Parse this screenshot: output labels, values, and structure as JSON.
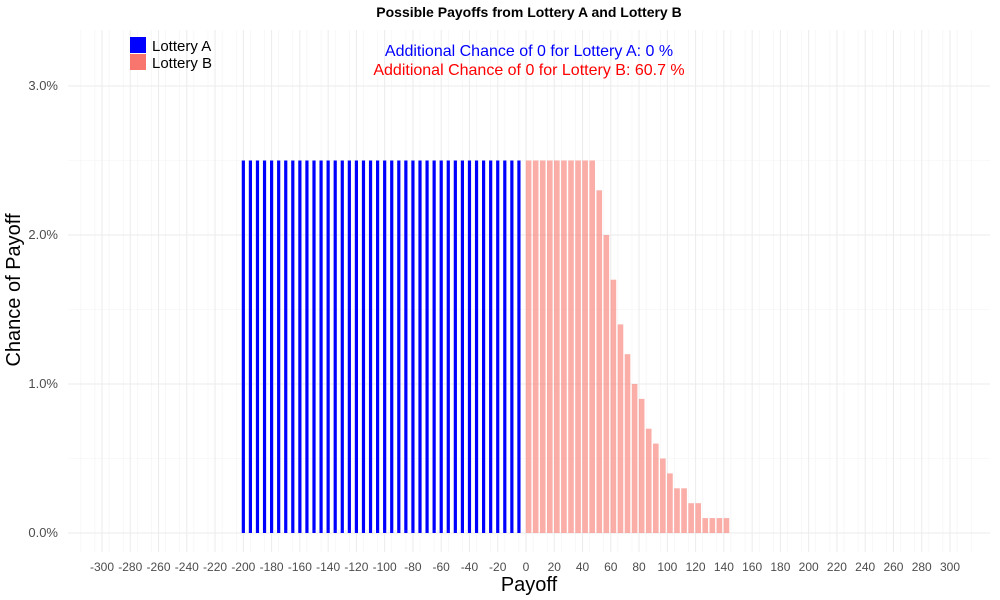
{
  "chart_data": {
    "type": "bar",
    "title": "Possible Payoffs from Lottery A and Lottery B",
    "xlabel": "Payoff",
    "ylabel": "Chance of Payoff",
    "xlim": [
      -315,
      315
    ],
    "ylim": [
      0,
      0.034
    ],
    "x_ticks": [
      -300,
      -280,
      -260,
      -240,
      -220,
      -200,
      -180,
      -160,
      -140,
      -120,
      -100,
      -80,
      -60,
      -40,
      -20,
      0,
      20,
      40,
      60,
      80,
      100,
      120,
      140,
      160,
      180,
      200,
      220,
      240,
      260,
      280,
      300
    ],
    "x_tick_labels": [
      "-300",
      "-280",
      "-260",
      "-240",
      "-220",
      "-200",
      "-180",
      "-160",
      "-140",
      "-120",
      "-100",
      "-80",
      "-60",
      "-40",
      "-20",
      "0",
      "20",
      "40",
      "60",
      "80",
      "100",
      "120",
      "140",
      "160",
      "180",
      "200",
      "220",
      "240",
      "260",
      "280",
      "300"
    ],
    "y_ticks": [
      0,
      0.01,
      0.02,
      0.03
    ],
    "y_tick_labels": [
      "0.0%",
      "1.0%",
      "2.0%",
      "3.0%"
    ],
    "grid": true,
    "legend_position": "top-left",
    "annotations": [
      {
        "text": "Additional Chance of 0 for Lottery A:  0 %",
        "color": "#0000ff"
      },
      {
        "text": "Additional Chance of 0 for Lottery B:  60.7 %",
        "color": "#ff0000"
      }
    ],
    "series": [
      {
        "name": "Lottery A",
        "color": "#0000ff",
        "x": [
          -200,
          -195,
          -190,
          -185,
          -180,
          -175,
          -170,
          -165,
          -160,
          -155,
          -150,
          -145,
          -140,
          -135,
          -130,
          -125,
          -120,
          -115,
          -110,
          -105,
          -100,
          -95,
          -90,
          -85,
          -80,
          -75,
          -70,
          -65,
          -60,
          -55,
          -50,
          -45,
          -40,
          -35,
          -30,
          -25,
          -20,
          -15,
          -10,
          -5
        ],
        "values": [
          0.025,
          0.025,
          0.025,
          0.025,
          0.025,
          0.025,
          0.025,
          0.025,
          0.025,
          0.025,
          0.025,
          0.025,
          0.025,
          0.025,
          0.025,
          0.025,
          0.025,
          0.025,
          0.025,
          0.025,
          0.025,
          0.025,
          0.025,
          0.025,
          0.025,
          0.025,
          0.025,
          0.025,
          0.025,
          0.025,
          0.025,
          0.025,
          0.025,
          0.025,
          0.025,
          0.025,
          0.025,
          0.025,
          0.025,
          0.025
        ]
      },
      {
        "name": "Lottery B",
        "color": "#f8766d",
        "x": [
          0,
          5,
          10,
          15,
          20,
          25,
          30,
          35,
          40,
          45,
          50,
          55,
          60,
          65,
          70,
          75,
          80,
          85,
          90,
          95,
          100,
          105,
          110,
          115,
          120,
          125,
          130,
          135,
          140
        ],
        "values": [
          0.025,
          0.025,
          0.025,
          0.025,
          0.025,
          0.025,
          0.025,
          0.025,
          0.025,
          0.025,
          0.023,
          0.02,
          0.017,
          0.014,
          0.012,
          0.01,
          0.009,
          0.007,
          0.006,
          0.005,
          0.004,
          0.003,
          0.003,
          0.002,
          0.002,
          0.001,
          0.001,
          0.001,
          0.001
        ]
      }
    ]
  }
}
